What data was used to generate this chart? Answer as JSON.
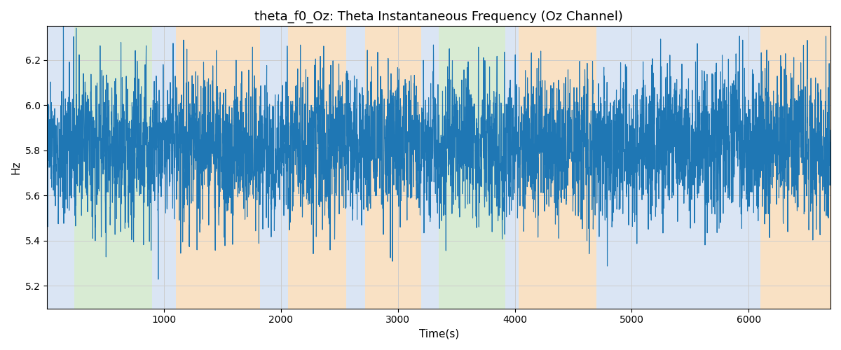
{
  "title": "theta_f0_Oz: Theta Instantaneous Frequency (Oz Channel)",
  "xlabel": "Time(s)",
  "ylabel": "Hz",
  "xlim": [
    0,
    6700
  ],
  "ylim": [
    5.1,
    6.35
  ],
  "line_color": "#1f77b4",
  "line_width": 0.8,
  "background_color": "#ffffff",
  "grid_color": "#cccccc",
  "regions": [
    {
      "start": 0,
      "end": 230,
      "color": "#aec6e8",
      "alpha": 0.45
    },
    {
      "start": 230,
      "end": 900,
      "color": "#b2d8a8",
      "alpha": 0.5
    },
    {
      "start": 900,
      "end": 1100,
      "color": "#aec6e8",
      "alpha": 0.45
    },
    {
      "start": 1100,
      "end": 1820,
      "color": "#f4c48a",
      "alpha": 0.5
    },
    {
      "start": 1820,
      "end": 2060,
      "color": "#aec6e8",
      "alpha": 0.45
    },
    {
      "start": 2060,
      "end": 2560,
      "color": "#f4c48a",
      "alpha": 0.5
    },
    {
      "start": 2560,
      "end": 2720,
      "color": "#aec6e8",
      "alpha": 0.45
    },
    {
      "start": 2720,
      "end": 3200,
      "color": "#f4c48a",
      "alpha": 0.5
    },
    {
      "start": 3200,
      "end": 3350,
      "color": "#aec6e8",
      "alpha": 0.45
    },
    {
      "start": 3350,
      "end": 3920,
      "color": "#b2d8a8",
      "alpha": 0.5
    },
    {
      "start": 3920,
      "end": 4030,
      "color": "#aec6e8",
      "alpha": 0.45
    },
    {
      "start": 4030,
      "end": 4700,
      "color": "#f4c48a",
      "alpha": 0.5
    },
    {
      "start": 4700,
      "end": 6100,
      "color": "#aec6e8",
      "alpha": 0.45
    },
    {
      "start": 6100,
      "end": 6700,
      "color": "#f4c48a",
      "alpha": 0.5
    }
  ],
  "seed": 42,
  "n_points": 6700,
  "mean_freq": 5.82,
  "noise_std": 0.22
}
